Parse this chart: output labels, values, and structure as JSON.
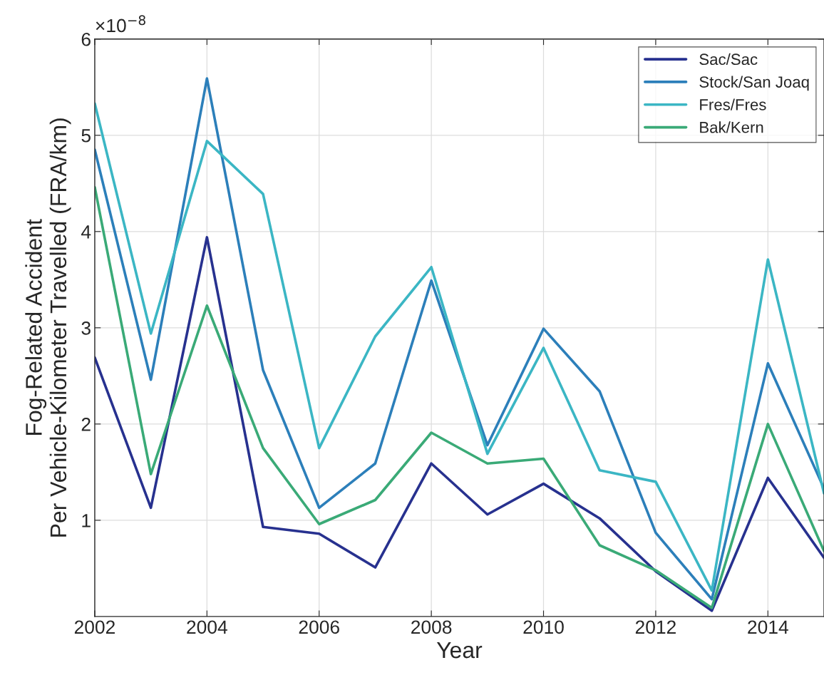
{
  "chart_data": {
    "type": "line",
    "xlabel": "Year",
    "ylabel": "Fog-Related Accident\nPer Vehicle-Kilometer Travelled (FRA/km)",
    "annotations": [
      "×10$^{−8}$"
    ],
    "x": [
      2002,
      2003,
      2004,
      2005,
      2006,
      2007,
      2008,
      2009,
      2010,
      2011,
      2012,
      2013,
      2014,
      2015
    ],
    "series": [
      {
        "name": "Sac/Sac",
        "color": "#27318f",
        "values": [
          2.69,
          1.13,
          3.94,
          0.93,
          0.86,
          0.51,
          1.59,
          1.06,
          1.38,
          1.02,
          0.47,
          0.06,
          1.44,
          0.61
        ]
      },
      {
        "name": "Stock/San Joaq",
        "color": "#2c7fba",
        "values": [
          4.85,
          2.46,
          5.59,
          2.56,
          1.13,
          1.59,
          3.49,
          1.78,
          2.99,
          2.34,
          0.87,
          0.18,
          2.63,
          1.33
        ]
      },
      {
        "name": "Fres/Fres",
        "color": "#3bb6c4",
        "values": [
          5.33,
          2.94,
          4.94,
          4.39,
          1.75,
          2.91,
          3.63,
          1.69,
          2.79,
          1.52,
          1.4,
          0.27,
          3.71,
          1.28
        ]
      },
      {
        "name": "Bak/Kern",
        "color": "#3aaa77",
        "values": [
          4.46,
          1.48,
          3.23,
          1.75,
          0.96,
          1.21,
          1.91,
          1.59,
          1.64,
          0.74,
          0.48,
          0.09,
          2.0,
          0.68
        ]
      }
    ],
    "xlim": [
      2002,
      2015
    ],
    "xticks": [
      2002,
      2004,
      2006,
      2008,
      2010,
      2012,
      2014
    ],
    "ylim": [
      0,
      6
    ],
    "yticks": [
      1,
      2,
      3,
      4,
      5,
      6
    ],
    "grid": true,
    "legend": "top right",
    "line_style": "solid",
    "marker": "none"
  }
}
